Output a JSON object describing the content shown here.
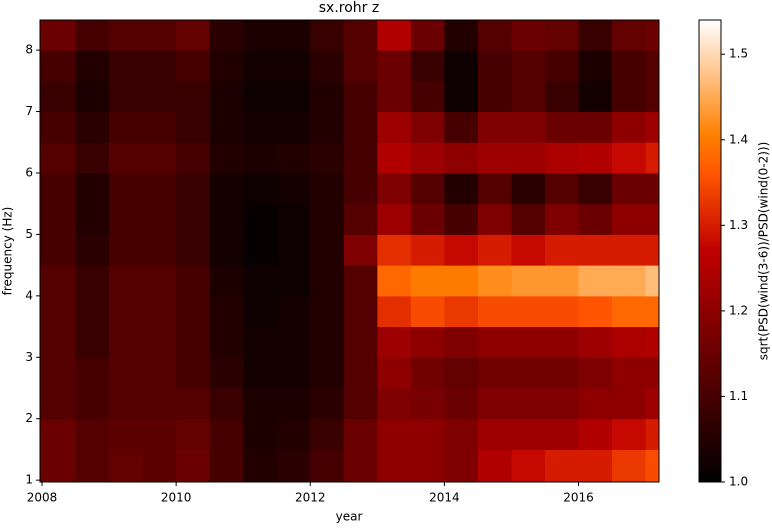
{
  "chart_data": {
    "type": "heatmap",
    "title": "sx.rohr z",
    "xlabel": "year",
    "ylabel": "frequency (Hz)",
    "colorbar_label": "sqrt(PSD(wind(3-6))/PSD(wind(0-2)))",
    "colormap": "gist_heat",
    "xlim": [
      2007.97,
      2017.2
    ],
    "ylim": [
      0.97,
      8.49
    ],
    "clim": [
      1.0,
      1.54
    ],
    "xticks": [
      2008,
      2010,
      2012,
      2014,
      2016
    ],
    "yticks": [
      1,
      2,
      3,
      4,
      5,
      6,
      7,
      8
    ],
    "cticks": [
      {
        "value": 1.0,
        "label": "1.0"
      },
      1.1,
      1.2,
      1.3,
      1.4,
      1.5
    ],
    "x_edges": [
      2007.97,
      2008.5,
      2009,
      2009.5,
      2010,
      2010.5,
      2011,
      2011.5,
      2012,
      2012.5,
      2013,
      2013.5,
      2014,
      2014.5,
      2015,
      2015.5,
      2016,
      2016.5,
      2017,
      2017.2
    ],
    "y_edges": [
      0.97,
      1.5,
      2,
      2.5,
      3,
      3.5,
      4,
      4.5,
      5,
      5.5,
      6,
      6.5,
      7,
      7.5,
      8,
      8.49
    ],
    "z": [
      [
        1.15,
        1.12,
        1.14,
        1.13,
        1.15,
        1.1,
        1.05,
        1.06,
        1.1,
        1.15,
        1.2,
        1.2,
        1.18,
        1.25,
        1.28,
        1.3,
        1.3,
        1.33,
        1.35
      ],
      [
        1.15,
        1.12,
        1.13,
        1.13,
        1.14,
        1.1,
        1.04,
        1.05,
        1.08,
        1.15,
        1.2,
        1.2,
        1.18,
        1.22,
        1.22,
        1.22,
        1.25,
        1.28,
        1.3
      ],
      [
        1.12,
        1.1,
        1.12,
        1.12,
        1.12,
        1.08,
        1.04,
        1.04,
        1.06,
        1.12,
        1.18,
        1.17,
        1.15,
        1.18,
        1.18,
        1.18,
        1.2,
        1.2,
        1.22
      ],
      [
        1.12,
        1.1,
        1.12,
        1.12,
        1.1,
        1.06,
        1.03,
        1.03,
        1.05,
        1.12,
        1.2,
        1.16,
        1.14,
        1.16,
        1.16,
        1.16,
        1.18,
        1.2,
        1.2
      ],
      [
        1.12,
        1.08,
        1.12,
        1.12,
        1.1,
        1.05,
        1.03,
        1.03,
        1.05,
        1.12,
        1.22,
        1.2,
        1.18,
        1.2,
        1.2,
        1.2,
        1.22,
        1.24,
        1.25
      ],
      [
        1.12,
        1.08,
        1.12,
        1.12,
        1.1,
        1.05,
        1.02,
        1.03,
        1.05,
        1.12,
        1.32,
        1.35,
        1.33,
        1.35,
        1.35,
        1.35,
        1.36,
        1.38,
        1.38
      ],
      [
        1.12,
        1.08,
        1.12,
        1.12,
        1.1,
        1.04,
        1.02,
        1.02,
        1.05,
        1.12,
        1.38,
        1.4,
        1.4,
        1.42,
        1.43,
        1.43,
        1.45,
        1.45,
        1.47
      ],
      [
        1.1,
        1.06,
        1.1,
        1.1,
        1.08,
        1.03,
        1.01,
        1.02,
        1.05,
        1.18,
        1.32,
        1.3,
        1.28,
        1.3,
        1.28,
        1.3,
        1.3,
        1.3,
        1.3
      ],
      [
        1.1,
        1.05,
        1.1,
        1.1,
        1.08,
        1.03,
        1.01,
        1.02,
        1.05,
        1.12,
        1.22,
        1.15,
        1.1,
        1.18,
        1.12,
        1.18,
        1.15,
        1.2,
        1.2
      ],
      [
        1.1,
        1.05,
        1.1,
        1.1,
        1.08,
        1.03,
        1.02,
        1.03,
        1.05,
        1.1,
        1.18,
        1.12,
        1.05,
        1.12,
        1.06,
        1.12,
        1.08,
        1.15,
        1.15
      ],
      [
        1.12,
        1.08,
        1.12,
        1.12,
        1.1,
        1.05,
        1.04,
        1.05,
        1.06,
        1.1,
        1.25,
        1.22,
        1.2,
        1.22,
        1.22,
        1.24,
        1.25,
        1.28,
        1.3
      ],
      [
        1.1,
        1.06,
        1.1,
        1.1,
        1.08,
        1.04,
        1.03,
        1.03,
        1.05,
        1.1,
        1.22,
        1.18,
        1.1,
        1.18,
        1.18,
        1.15,
        1.15,
        1.2,
        1.22
      ],
      [
        1.08,
        1.04,
        1.08,
        1.08,
        1.08,
        1.04,
        1.02,
        1.02,
        1.05,
        1.1,
        1.15,
        1.1,
        1.02,
        1.1,
        1.12,
        1.08,
        1.03,
        1.1,
        1.12
      ],
      [
        1.1,
        1.05,
        1.08,
        1.08,
        1.1,
        1.05,
        1.03,
        1.03,
        1.06,
        1.12,
        1.15,
        1.08,
        1.02,
        1.1,
        1.12,
        1.1,
        1.04,
        1.1,
        1.12
      ],
      [
        1.15,
        1.1,
        1.12,
        1.12,
        1.14,
        1.06,
        1.04,
        1.04,
        1.08,
        1.12,
        1.25,
        1.15,
        1.05,
        1.12,
        1.15,
        1.14,
        1.08,
        1.14,
        1.15
      ]
    ]
  }
}
